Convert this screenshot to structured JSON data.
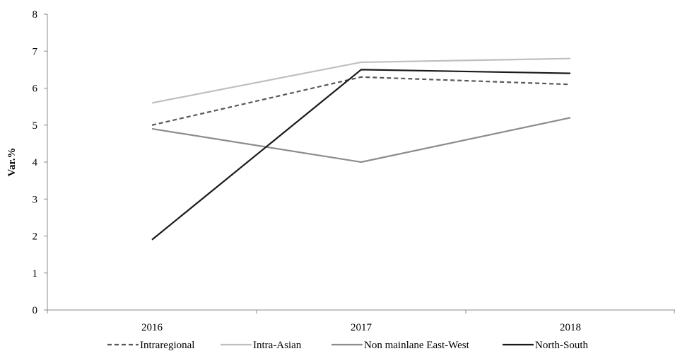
{
  "chart_data": {
    "type": "line",
    "title": "",
    "xlabel": "",
    "ylabel": "Var.%",
    "categories": [
      "2016",
      "2017",
      "2018"
    ],
    "ylim": [
      0,
      8
    ],
    "yticks": [
      0,
      1,
      2,
      3,
      4,
      5,
      6,
      7,
      8
    ],
    "grid": false,
    "legend": "bottom",
    "series": [
      {
        "name": "Intraregional",
        "values": [
          5.0,
          6.3,
          6.1
        ],
        "color": "#595959",
        "dash": "dashed"
      },
      {
        "name": "Intra-Asian",
        "values": [
          5.6,
          6.7,
          6.8
        ],
        "color": "#bfbfbf",
        "dash": "solid"
      },
      {
        "name": "Non mainlane East-West",
        "values": [
          4.9,
          4.0,
          5.2
        ],
        "color": "#8c8c8c",
        "dash": "solid"
      },
      {
        "name": "North-South",
        "values": [
          1.9,
          6.5,
          6.4
        ],
        "color": "#1a1a1a",
        "dash": "solid"
      }
    ]
  }
}
